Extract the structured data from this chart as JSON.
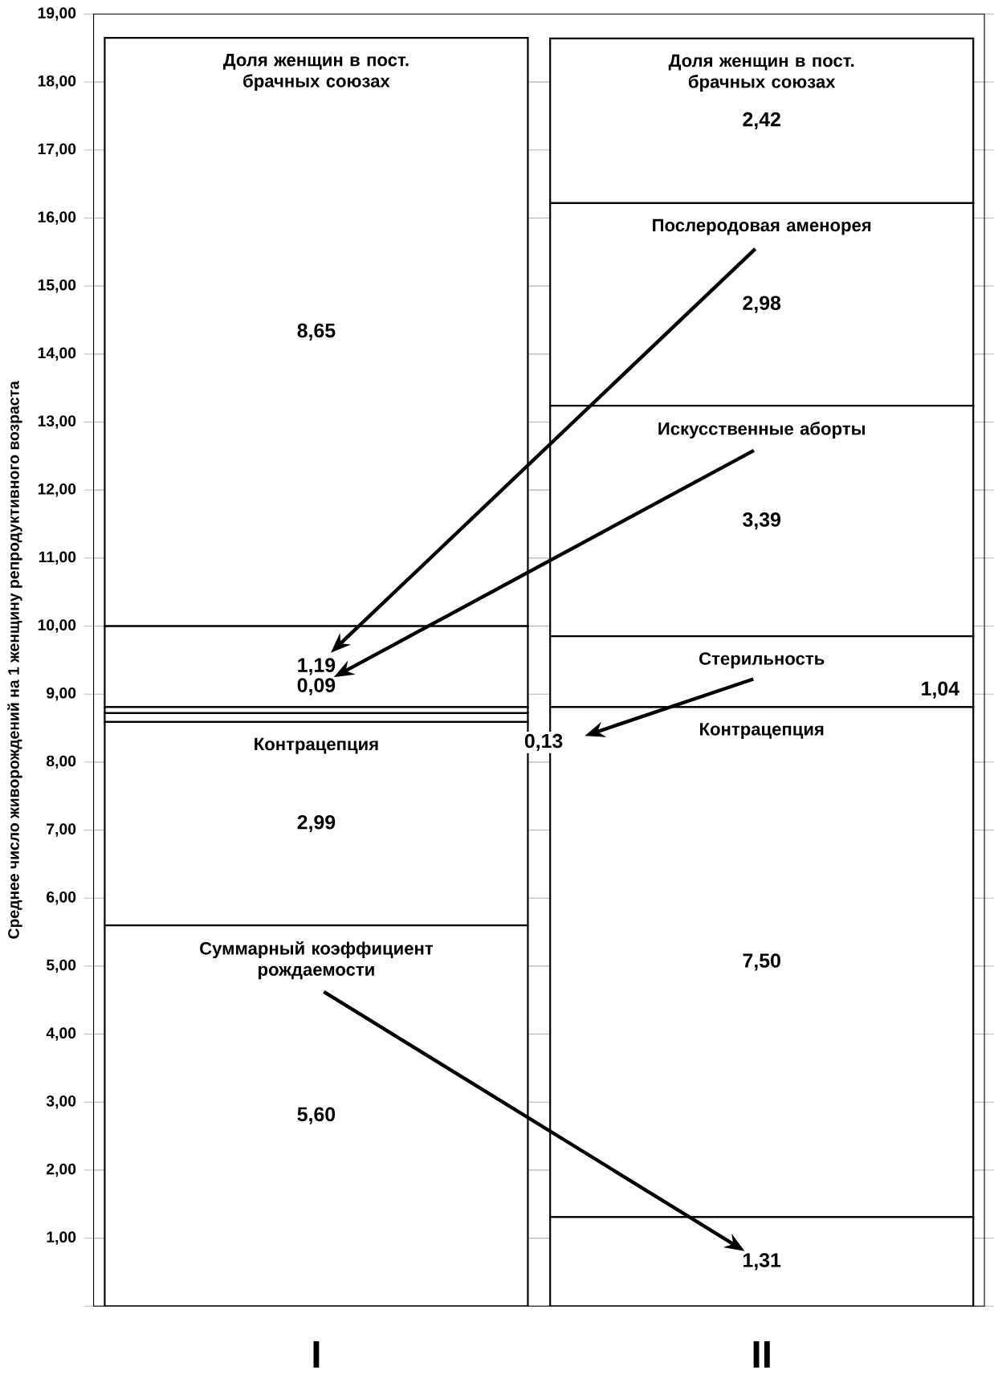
{
  "chart_data": {
    "type": "bar",
    "stacked": true,
    "ylabel": "Среднее число живорождений на 1 женщину репродуктивного возраста",
    "categories": [
      "I",
      "II"
    ],
    "series": [
      {
        "name": "Суммарный коэффициент рождаемости",
        "color": "#ffffff",
        "values": [
          5.6,
          1.31
        ],
        "value_labels": [
          "5,60",
          "1,31"
        ]
      },
      {
        "name": "Контрацепция",
        "color": "#ffffff",
        "values": [
          2.99,
          7.5
        ],
        "value_labels": [
          "2,99",
          "7,50"
        ]
      },
      {
        "name": "Стерильность",
        "color": "#ffffff",
        "values": [
          0.13,
          1.04
        ],
        "value_labels": [
          "0,13",
          "1,04"
        ]
      },
      {
        "name": "Искусственные аборты",
        "color": "#ffffff",
        "values": [
          0.09,
          3.39
        ],
        "value_labels": [
          "0,09",
          "3,39"
        ]
      },
      {
        "name": "Послеродовая аменорея",
        "color": "#ffffff",
        "values": [
          1.19,
          2.98
        ],
        "value_labels": [
          "1,19",
          "2,98"
        ]
      },
      {
        "name": "Доля женщин в пост. брачных союзах",
        "color": "#ffffff",
        "values": [
          8.65,
          2.42
        ],
        "value_labels": [
          "8,65",
          "2,42"
        ]
      }
    ],
    "ylim": [
      0,
      19
    ],
    "yticks": [
      {
        "value": 0,
        "label": null
      },
      {
        "value": 1,
        "label": "1,00"
      },
      {
        "value": 2,
        "label": "2,00"
      },
      {
        "value": 3,
        "label": "3,00"
      },
      {
        "value": 4,
        "label": "4,00"
      },
      {
        "value": 5,
        "label": "5,00"
      },
      {
        "value": 6,
        "label": "6,00"
      },
      {
        "value": 7,
        "label": "7,00"
      },
      {
        "value": 8,
        "label": "8,00"
      },
      {
        "value": 9,
        "label": "9,00"
      },
      {
        "value": 10,
        "label": "10,00"
      },
      {
        "value": 11,
        "label": "11,00"
      },
      {
        "value": 12,
        "label": "12,00"
      },
      {
        "value": 13,
        "label": "13,00"
      },
      {
        "value": 14,
        "label": "14,00"
      },
      {
        "value": 15,
        "label": "15,00"
      },
      {
        "value": 16,
        "label": "16,00"
      },
      {
        "value": 17,
        "label": "17,00"
      },
      {
        "value": 18,
        "label": "18,00"
      },
      {
        "value": 19,
        "label": "19,00"
      }
    ],
    "grid": "y"
  }
}
